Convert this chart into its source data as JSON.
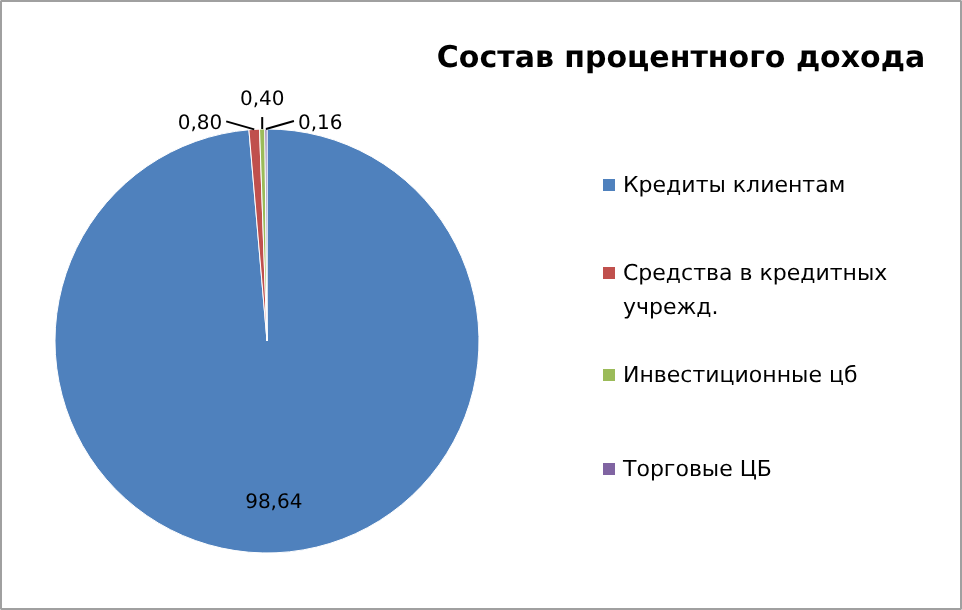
{
  "chart_data": {
    "type": "pie",
    "title": "Состав процентного дохода",
    "categories": [
      "Кредиты клиентам",
      "Средства в кредитных учрежд.",
      "Инвестиционные цб",
      "Торговые ЦБ"
    ],
    "values": [
      98.64,
      0.8,
      0.4,
      0.16
    ],
    "colors": [
      "#4f81bd",
      "#c0504d",
      "#9bbb59",
      "#8064a2"
    ],
    "value_labels": [
      "98,64",
      "0,80",
      "0,40",
      "0,16"
    ],
    "legend": "right"
  }
}
